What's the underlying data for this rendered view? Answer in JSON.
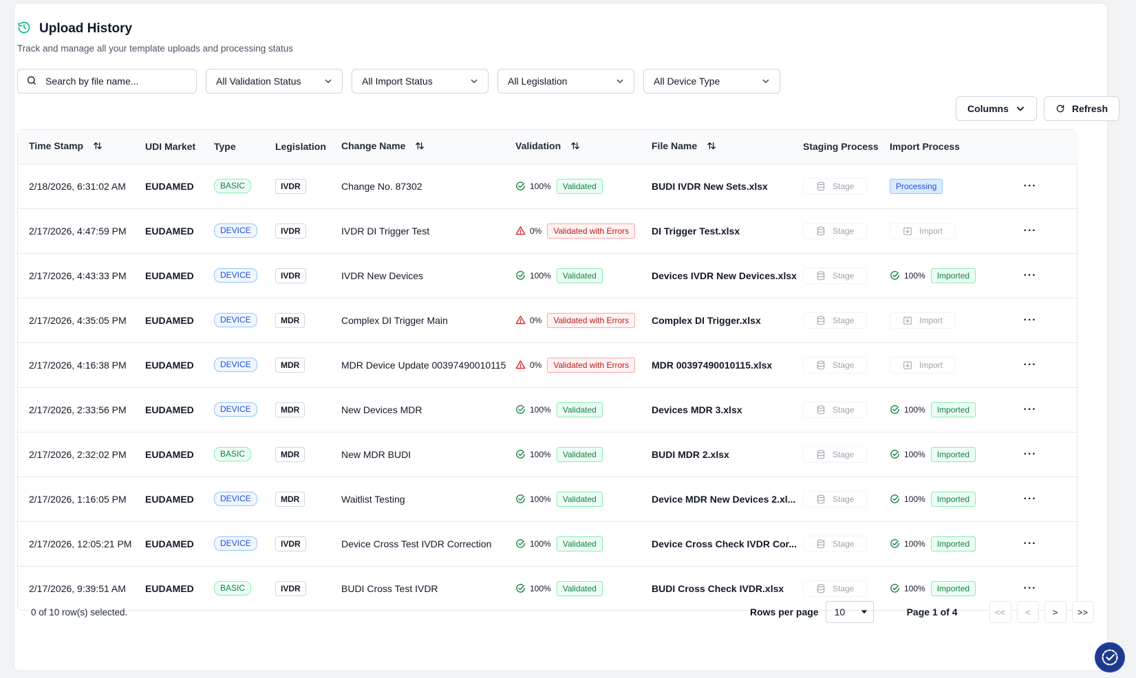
{
  "header": {
    "title": "Upload History",
    "subtitle": "Track and manage all your template uploads and processing status"
  },
  "filters": {
    "search_placeholder": "Search by file name...",
    "validation": "All Validation Status",
    "import": "All Import Status",
    "legislation": "All Legislation",
    "device_type": "All Device Type"
  },
  "actions": {
    "columns": "Columns",
    "refresh": "Refresh"
  },
  "table": {
    "headers": {
      "timestamp": "Time Stamp",
      "market": "UDI Market",
      "type": "Type",
      "legislation": "Legislation",
      "change": "Change Name",
      "validation": "Validation",
      "file": "File Name",
      "staging": "Staging Process",
      "import": "Import Process"
    },
    "stage_label": "Stage",
    "import_label": "Import",
    "rows": [
      {
        "timestamp": "2/18/2026, 6:31:02 AM",
        "market": "EUDAMED",
        "type": "BASIC",
        "legislation": "IVDR",
        "change": "Change No. 87302",
        "val_pct": "100%",
        "val_status": "Validated",
        "val_ok": true,
        "file": "BUDI IVDR New Sets.xlsx",
        "import_state": "processing",
        "import_status": "Processing",
        "import_pct": ""
      },
      {
        "timestamp": "2/17/2026, 4:47:59 PM",
        "market": "EUDAMED",
        "type": "DEVICE",
        "legislation": "IVDR",
        "change": "IVDR DI Trigger Test",
        "val_pct": "0%",
        "val_status": "Validated with Errors",
        "val_ok": false,
        "file": "DI Trigger Test.xlsx",
        "import_state": "import",
        "import_status": "",
        "import_pct": ""
      },
      {
        "timestamp": "2/17/2026, 4:43:33 PM",
        "market": "EUDAMED",
        "type": "DEVICE",
        "legislation": "IVDR",
        "change": "IVDR New Devices",
        "val_pct": "100%",
        "val_status": "Validated",
        "val_ok": true,
        "file": "Devices IVDR New Devices.xlsx",
        "import_state": "imported",
        "import_status": "Imported",
        "import_pct": "100%"
      },
      {
        "timestamp": "2/17/2026, 4:35:05 PM",
        "market": "EUDAMED",
        "type": "DEVICE",
        "legislation": "MDR",
        "change": "Complex DI Trigger Main",
        "val_pct": "0%",
        "val_status": "Validated with Errors",
        "val_ok": false,
        "file": "Complex DI Trigger.xlsx",
        "import_state": "import",
        "import_status": "",
        "import_pct": ""
      },
      {
        "timestamp": "2/17/2026, 4:16:38 PM",
        "market": "EUDAMED",
        "type": "DEVICE",
        "legislation": "MDR",
        "change": "MDR Device Update 00397490010115",
        "val_pct": "0%",
        "val_status": "Validated with Errors",
        "val_ok": false,
        "file": "MDR 00397490010115.xlsx",
        "import_state": "import",
        "import_status": "",
        "import_pct": ""
      },
      {
        "timestamp": "2/17/2026, 2:33:56 PM",
        "market": "EUDAMED",
        "type": "DEVICE",
        "legislation": "MDR",
        "change": "New Devices MDR",
        "val_pct": "100%",
        "val_status": "Validated",
        "val_ok": true,
        "file": "Devices MDR 3.xlsx",
        "import_state": "imported",
        "import_status": "Imported",
        "import_pct": "100%"
      },
      {
        "timestamp": "2/17/2026, 2:32:02 PM",
        "market": "EUDAMED",
        "type": "BASIC",
        "legislation": "MDR",
        "change": "New MDR BUDI",
        "val_pct": "100%",
        "val_status": "Validated",
        "val_ok": true,
        "file": "BUDI MDR 2.xlsx",
        "import_state": "imported",
        "import_status": "Imported",
        "import_pct": "100%"
      },
      {
        "timestamp": "2/17/2026, 1:16:05 PM",
        "market": "EUDAMED",
        "type": "DEVICE",
        "legislation": "MDR",
        "change": "Waitlist Testing",
        "val_pct": "100%",
        "val_status": "Validated",
        "val_ok": true,
        "file": "Device MDR New Devices 2.xl...",
        "import_state": "imported",
        "import_status": "Imported",
        "import_pct": "100%"
      },
      {
        "timestamp": "2/17/2026, 12:05:21 PM",
        "market": "EUDAMED",
        "type": "DEVICE",
        "legislation": "IVDR",
        "change": "Device Cross Test IVDR Correction",
        "val_pct": "100%",
        "val_status": "Validated",
        "val_ok": true,
        "file": "Device Cross Check IVDR Cor...",
        "import_state": "imported",
        "import_status": "Imported",
        "import_pct": "100%"
      },
      {
        "timestamp": "2/17/2026, 9:39:51 AM",
        "market": "EUDAMED",
        "type": "BASIC",
        "legislation": "IVDR",
        "change": "BUDI Cross Test IVDR",
        "val_pct": "100%",
        "val_status": "Validated",
        "val_ok": true,
        "file": "BUDI Cross Check IVDR.xlsx",
        "import_state": "imported",
        "import_status": "Imported",
        "import_pct": "100%"
      }
    ]
  },
  "footer": {
    "selected": "0 of 10 row(s) selected.",
    "rows_per_page_label": "Rows per page",
    "rows_per_page_value": "10",
    "page_info": "Page 1 of 4",
    "first": "<<",
    "prev": "<",
    "next": ">",
    "last": ">>"
  },
  "colors": {
    "accent": "#10b981",
    "success": "#15803d",
    "error": "#b91c1c",
    "info": "#1d4ed8"
  }
}
